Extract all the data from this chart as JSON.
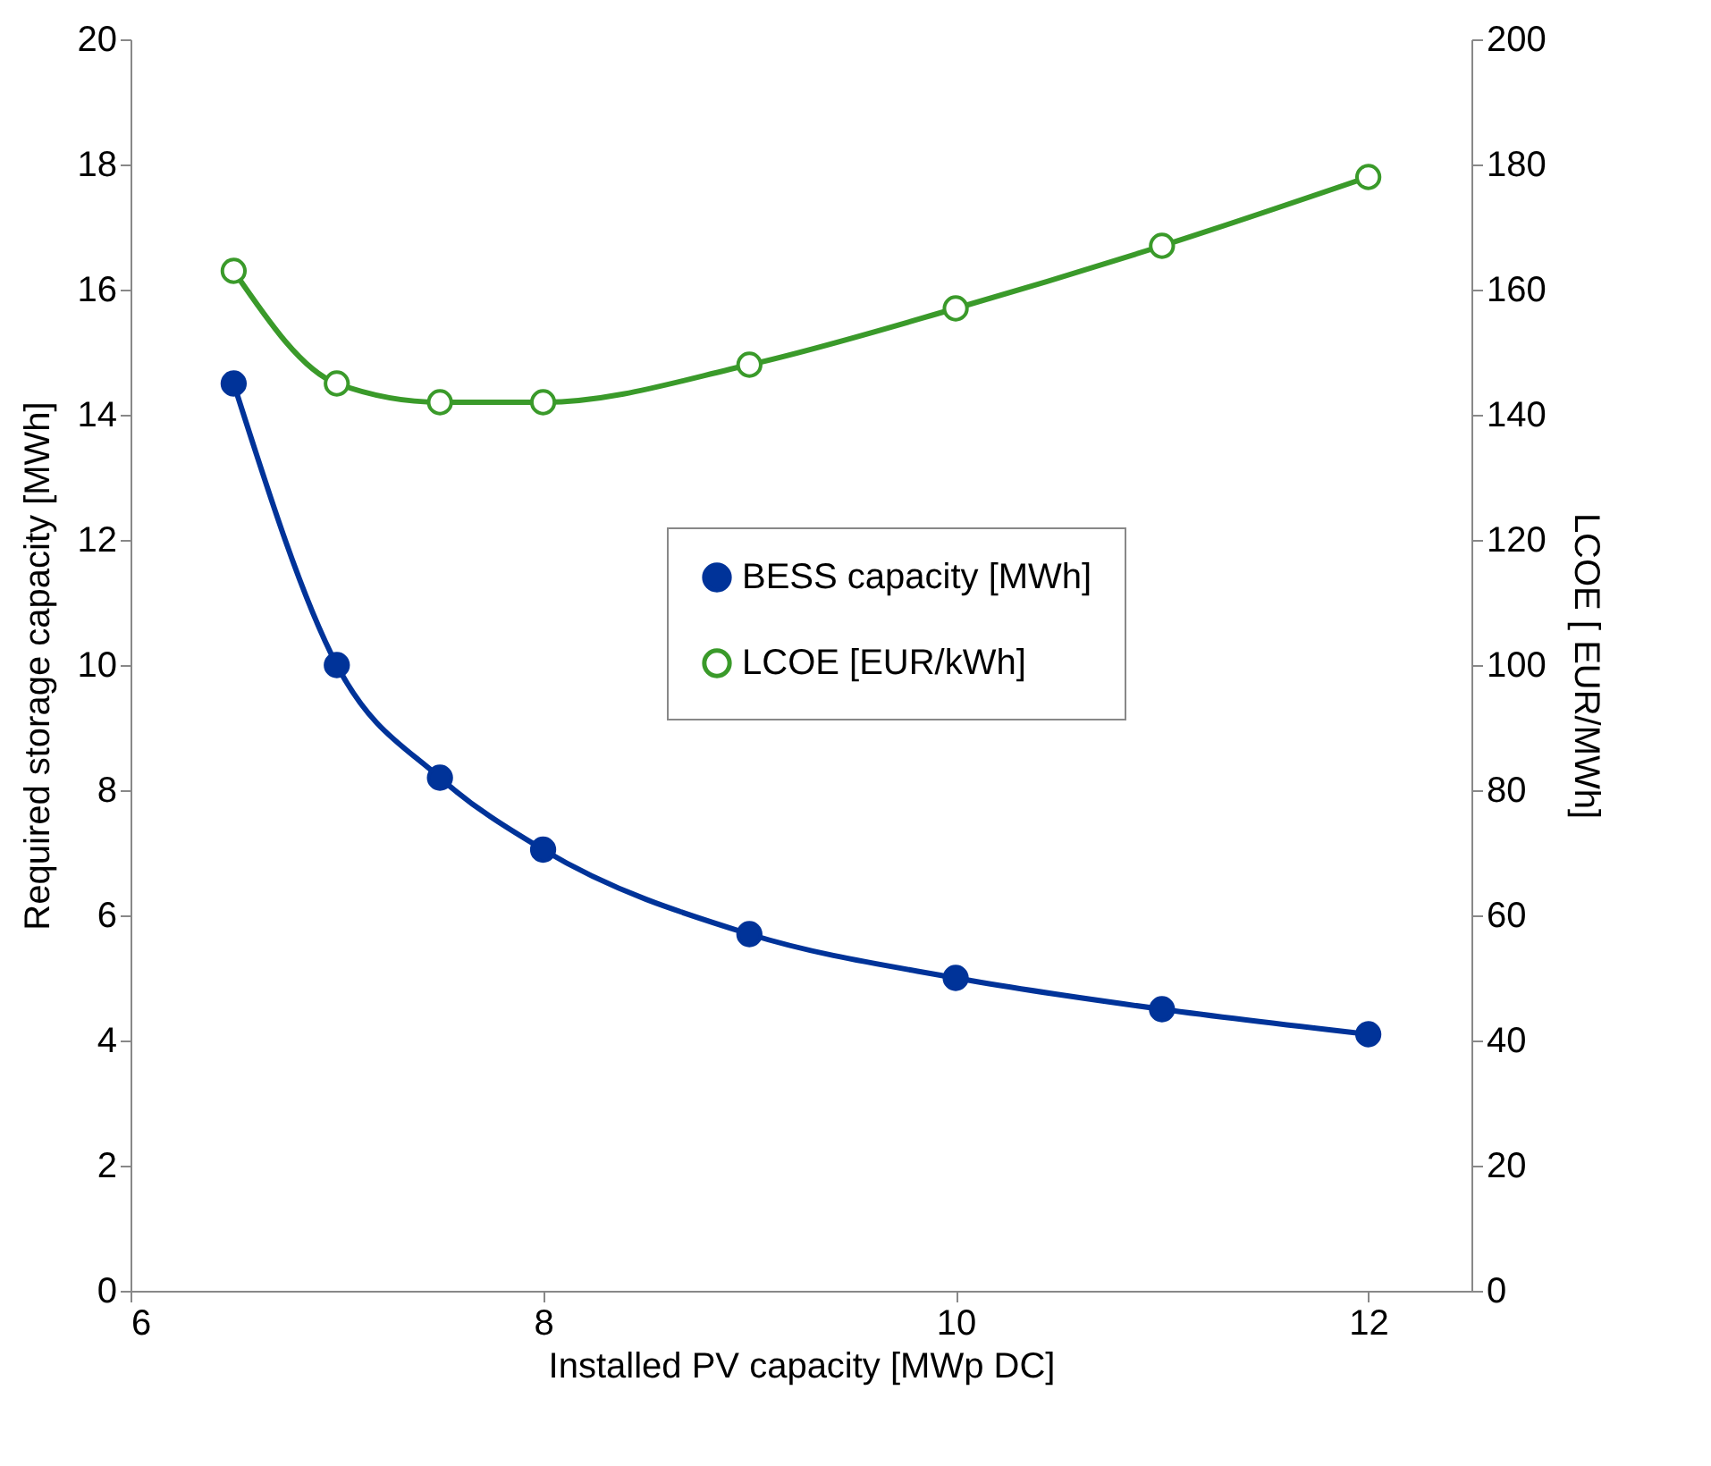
{
  "chart_data": {
    "type": "line",
    "xlabel": "Installed PV capacity [MWp DC]",
    "ylabel": "Required storage capacity [MWh]",
    "y2label": "LCOE [ EUR/MWh]",
    "x": [
      6.5,
      7,
      7.5,
      8,
      9,
      10,
      11,
      12
    ],
    "xlim": [
      6,
      12.5
    ],
    "xticks": [
      6,
      8,
      10,
      12
    ],
    "ylim": [
      0,
      20
    ],
    "yticks": [
      0,
      2,
      4,
      6,
      8,
      10,
      12,
      14,
      16,
      18,
      20
    ],
    "y2lim": [
      0,
      200
    ],
    "y2ticks": [
      0,
      20,
      40,
      60,
      80,
      100,
      120,
      140,
      160,
      180,
      200
    ],
    "series": [
      {
        "name": "BESS capacity [MWh]",
        "color": "#003399",
        "values": [
          14.5,
          10.0,
          8.2,
          7.05,
          5.7,
          5.0,
          4.5,
          4.1
        ]
      },
      {
        "name": "LCOE [EUR/kWh]",
        "color": "#3a9a2a",
        "axis": "y2",
        "values": [
          163,
          145,
          142,
          142,
          148,
          157,
          167,
          178
        ]
      }
    ],
    "marker": "circle",
    "line_style": "solid",
    "grid": false,
    "legend": "right"
  }
}
